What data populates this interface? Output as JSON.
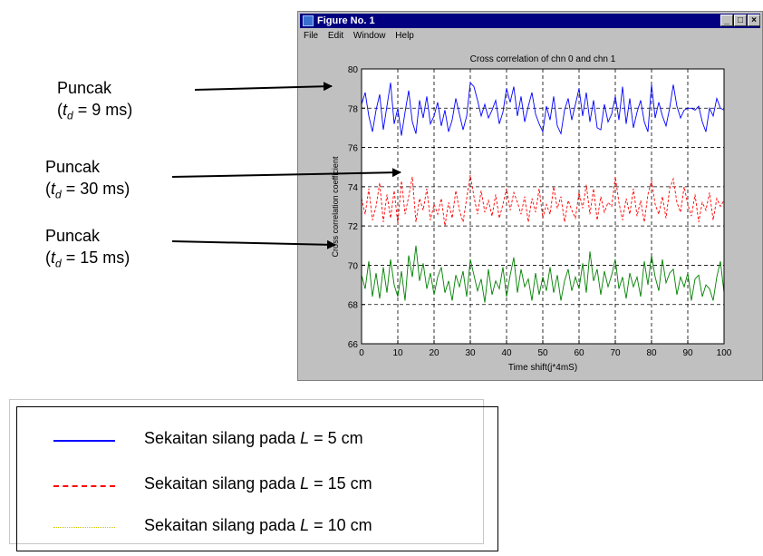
{
  "window": {
    "title": "Figure No. 1",
    "menu": [
      "File",
      "Edit",
      "Window",
      "Help"
    ],
    "controls": [
      "_",
      "□",
      "×"
    ]
  },
  "annotations": [
    {
      "label": "Puncak",
      "detail_pre": "(",
      "td": "t",
      "td_sub": "d",
      "detail_post": " = 9 ms)"
    },
    {
      "label": "Puncak",
      "detail_pre": "(",
      "td": "t",
      "td_sub": "d",
      "detail_post": " = 30 ms)"
    },
    {
      "label": "Puncak",
      "detail_pre": "(",
      "td": "t",
      "td_sub": "d",
      "detail_post": " = 15 ms)"
    }
  ],
  "legend": [
    {
      "pre": "Sekaitan silang pada ",
      "var": "L",
      "post": " = 5 cm",
      "color": "#0000ff",
      "style": "solid"
    },
    {
      "pre": "Sekaitan silang pada ",
      "var": "L",
      "post": " = 15 cm",
      "color": "#ff0000",
      "style": "dashed"
    },
    {
      "pre": "Sekaitan silang pada ",
      "var": "L",
      "post": " = 10 cm",
      "color": "#c8c800",
      "style": "dotted"
    }
  ],
  "chart_data": {
    "type": "line",
    "title": "Cross correlation of chn 0 and chn 1",
    "xlabel": "Time shift(j*4mS)",
    "ylabel": "Cross correlation coefficient",
    "xlim": [
      0,
      100
    ],
    "ylim": [
      66,
      80
    ],
    "xticks": [
      0,
      10,
      20,
      30,
      40,
      50,
      60,
      70,
      80,
      90,
      100
    ],
    "yticks": [
      66,
      68,
      70,
      72,
      74,
      76,
      78,
      80
    ],
    "grid": true,
    "series": [
      {
        "color": "#0000ff",
        "style": "solid",
        "x": [
          0,
          1,
          2,
          3,
          4,
          5,
          6,
          7,
          8,
          9,
          10,
          11,
          12,
          13,
          14,
          15,
          16,
          17,
          18,
          19,
          20,
          21,
          22,
          23,
          24,
          25,
          26,
          27,
          28,
          29,
          30,
          31,
          32,
          33,
          34,
          35,
          36,
          37,
          38,
          39,
          40,
          41,
          42,
          43,
          44,
          45,
          46,
          47,
          48,
          49,
          50,
          51,
          52,
          53,
          54,
          55,
          56,
          57,
          58,
          59,
          60,
          61,
          62,
          63,
          64,
          65,
          66,
          67,
          68,
          69,
          70,
          71,
          72,
          73,
          74,
          75,
          76,
          77,
          78,
          79,
          80,
          81,
          82,
          83,
          84,
          85,
          86,
          87,
          88,
          89,
          90,
          91,
          92,
          93,
          94,
          95,
          96,
          97,
          98,
          99,
          100
        ],
        "values": [
          78.2,
          78.8,
          77.6,
          76.8,
          77.9,
          78.7,
          76.9,
          78.1,
          79.3,
          77.2,
          78.0,
          76.6,
          77.8,
          78.9,
          77.3,
          76.7,
          78.4,
          77.5,
          78.6,
          77.2,
          77.6,
          78.3,
          77.1,
          77.9,
          76.8,
          77.4,
          78.5,
          77.7,
          76.9,
          77.6,
          79.3,
          79.1,
          78.4,
          77.6,
          78.2,
          77.5,
          77.9,
          78.4,
          77.2,
          77.8,
          79.0,
          78.3,
          79.1,
          77.6,
          78.6,
          77.3,
          78.1,
          78.8,
          77.7,
          77.2,
          76.8,
          78.1,
          77.4,
          78.6,
          77.1,
          76.7,
          77.9,
          78.5,
          77.4,
          78.2,
          79.0,
          77.6,
          78.8,
          77.3,
          78.4,
          77.0,
          76.9,
          78.2,
          77.3,
          77.7,
          78.6,
          77.4,
          79.1,
          77.2,
          78.5,
          77.0,
          77.8,
          78.4,
          77.3,
          76.8,
          79.2,
          77.5,
          78.3,
          77.6,
          77.1,
          78.0,
          79.2,
          78.1,
          77.5,
          77.9,
          78.0,
          78.0,
          77.9,
          78.1,
          77.3,
          76.8,
          78.0,
          77.6,
          78.5,
          78.0,
          77.9
        ]
      },
      {
        "color": "#ff0000",
        "style": "dashed",
        "x": [
          0,
          1,
          2,
          3,
          4,
          5,
          6,
          7,
          8,
          9,
          10,
          11,
          12,
          13,
          14,
          15,
          16,
          17,
          18,
          19,
          20,
          21,
          22,
          23,
          24,
          25,
          26,
          27,
          28,
          29,
          30,
          31,
          32,
          33,
          34,
          35,
          36,
          37,
          38,
          39,
          40,
          41,
          42,
          43,
          44,
          45,
          46,
          47,
          48,
          49,
          50,
          51,
          52,
          53,
          54,
          55,
          56,
          57,
          58,
          59,
          60,
          61,
          62,
          63,
          64,
          65,
          66,
          67,
          68,
          69,
          70,
          71,
          72,
          73,
          74,
          75,
          76,
          77,
          78,
          79,
          80,
          81,
          82,
          83,
          84,
          85,
          86,
          87,
          88,
          89,
          90,
          91,
          92,
          93,
          94,
          95,
          96,
          97,
          98,
          99,
          100
        ],
        "values": [
          73.4,
          72.6,
          73.9,
          72.3,
          73.0,
          74.2,
          72.2,
          73.6,
          72.4,
          73.8,
          72.1,
          74.3,
          72.6,
          73.5,
          74.5,
          72.2,
          73.4,
          72.8,
          73.9,
          72.3,
          73.1,
          72.6,
          73.4,
          72.0,
          73.2,
          72.4,
          73.8,
          72.8,
          72.2,
          73.4,
          74.6,
          73.5,
          72.6,
          73.8,
          72.7,
          73.3,
          72.5,
          73.6,
          72.4,
          73.1,
          73.9,
          72.8,
          73.7,
          73.2,
          72.6,
          73.5,
          72.2,
          73.4,
          72.7,
          73.9,
          72.4,
          73.1,
          72.6,
          74.0,
          72.9,
          73.5,
          72.2,
          73.3,
          72.8,
          72.4,
          73.7,
          72.9,
          74.1,
          72.6,
          73.9,
          72.3,
          73.5,
          72.7,
          73.2,
          73.0,
          74.5,
          73.2,
          72.3,
          73.4,
          72.6,
          73.9,
          72.5,
          73.3,
          72.2,
          73.6,
          74.3,
          73.1,
          72.6,
          73.5,
          72.4,
          73.9,
          74.4,
          73.2,
          72.7,
          74.0,
          73.1,
          72.5,
          73.6,
          72.2,
          73.2,
          72.8,
          73.7,
          72.3,
          73.4,
          73.0,
          73.3
        ]
      },
      {
        "color": "#008000",
        "style": "solid",
        "x": [
          0,
          1,
          2,
          3,
          4,
          5,
          6,
          7,
          8,
          9,
          10,
          11,
          12,
          13,
          14,
          15,
          16,
          17,
          18,
          19,
          20,
          21,
          22,
          23,
          24,
          25,
          26,
          27,
          28,
          29,
          30,
          31,
          32,
          33,
          34,
          35,
          36,
          37,
          38,
          39,
          40,
          41,
          42,
          43,
          44,
          45,
          46,
          47,
          48,
          49,
          50,
          51,
          52,
          53,
          54,
          55,
          56,
          57,
          58,
          59,
          60,
          61,
          62,
          63,
          64,
          65,
          66,
          67,
          68,
          69,
          70,
          71,
          72,
          73,
          74,
          75,
          76,
          77,
          78,
          79,
          80,
          81,
          82,
          83,
          84,
          85,
          86,
          87,
          88,
          89,
          90,
          91,
          92,
          93,
          94,
          95,
          96,
          97,
          98,
          99,
          100
        ],
        "values": [
          69.5,
          68.8,
          70.2,
          68.4,
          69.6,
          68.3,
          69.9,
          68.6,
          70.3,
          69.0,
          68.4,
          69.7,
          68.2,
          70.5,
          69.4,
          71.0,
          69.2,
          70.1,
          68.8,
          69.6,
          68.5,
          69.4,
          69.9,
          68.6,
          69.2,
          68.2,
          69.5,
          68.9,
          69.7,
          68.4,
          70.3,
          69.5,
          68.7,
          69.3,
          68.1,
          69.8,
          68.5,
          69.2,
          68.8,
          69.9,
          68.4,
          69.5,
          70.4,
          68.6,
          69.8,
          68.9,
          69.3,
          68.2,
          69.6,
          68.5,
          69.4,
          68.7,
          69.9,
          68.6,
          69.5,
          68.2,
          69.2,
          69.8,
          68.7,
          69.4,
          68.8,
          70.1,
          68.6,
          70.7,
          69.2,
          69.8,
          68.5,
          69.7,
          68.9,
          69.5,
          70.3,
          68.8,
          69.4,
          68.3,
          69.6,
          68.9,
          69.4,
          68.4,
          70.2,
          69.0,
          70.5,
          69.4,
          68.7,
          70.3,
          69.1,
          69.6,
          69.8,
          68.5,
          69.4,
          68.9,
          69.6,
          68.2,
          69.3,
          69.5,
          68.4,
          69.0,
          68.8,
          68.2,
          69.4,
          70.2,
          68.6
        ]
      }
    ]
  }
}
